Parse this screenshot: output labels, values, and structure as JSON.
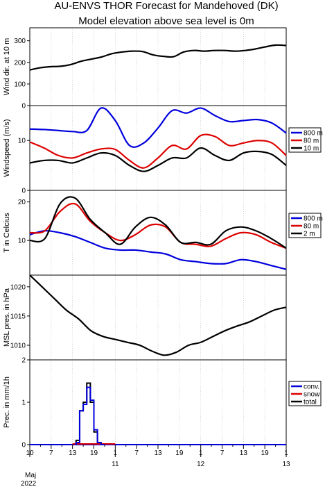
{
  "header": {
    "title_line1": "AU-ENVS THOR Forecast for Mandehoved (DK)",
    "title_line2": "Model elevation above sea level is    0m"
  },
  "x_axis": {
    "tick_labels": [
      "10",
      "7",
      "13",
      "19",
      "1",
      "7",
      "13",
      "19",
      "1",
      "7",
      "13",
      "19",
      "1",
      "7",
      "13",
      "19",
      "1"
    ],
    "day_labels": [
      "11",
      "12",
      "13"
    ],
    "month_label": "Maj",
    "year_label": "2022"
  },
  "chart_data": [
    {
      "type": "line",
      "id": "wind_dir",
      "ylabel": "Wind dir. at 10 m",
      "ylim": [
        0,
        360
      ],
      "yticks": [
        0,
        100,
        200,
        300
      ],
      "series": [
        {
          "color": "#000000",
          "values": [
            165,
            175,
            180,
            182,
            190,
            205,
            215,
            225,
            240,
            248,
            252,
            250,
            235,
            228,
            226,
            248,
            255,
            252,
            255,
            255,
            252,
            255,
            262,
            272,
            280,
            278
          ]
        }
      ]
    },
    {
      "type": "line",
      "id": "windspeed",
      "ylabel": "Windspeed (m/s)",
      "ylim": [
        0,
        17
      ],
      "yticks": [
        0,
        10
      ],
      "legend": [
        "800 m",
        "80 m",
        "10 m"
      ],
      "series": [
        {
          "name": "800 m",
          "color": "#0000dd",
          "values": [
            12.3,
            12.2,
            12.0,
            11.8,
            12.0,
            16.5,
            14.0,
            9.0,
            9.5,
            12.5,
            16.0,
            15.5,
            16.5,
            15.0,
            13.8,
            14.0,
            14.2,
            13.5,
            11.5
          ]
        },
        {
          "name": "80 m",
          "color": "#dd0000",
          "values": [
            9.7,
            8.5,
            7.0,
            6.5,
            7.5,
            8.3,
            8.2,
            6.0,
            4.5,
            6.5,
            9.0,
            8.3,
            11.0,
            10.8,
            9.0,
            9.5,
            10.0,
            9.5,
            7.0
          ]
        },
        {
          "name": "10 m",
          "color": "#000000",
          "values": [
            5.5,
            6.0,
            6.0,
            5.5,
            6.5,
            7.5,
            7.0,
            5.0,
            3.8,
            5.0,
            6.5,
            6.5,
            8.5,
            7.0,
            6.0,
            7.5,
            7.8,
            7.2,
            5.0
          ]
        }
      ]
    },
    {
      "type": "line",
      "id": "temperature",
      "ylabel": "T in Celcius",
      "ylim": [
        1,
        23
      ],
      "yticks": [
        10,
        20
      ],
      "legend": [
        "800 m",
        "80 m",
        "2 m"
      ],
      "series": [
        {
          "name": "800 m",
          "color": "#0000dd",
          "values": [
            11.5,
            12.5,
            12.0,
            11.0,
            9.5,
            8.0,
            7.5,
            7.5,
            7.0,
            6.5,
            5.0,
            4.5,
            4.0,
            4.0,
            5.0,
            4.5,
            3.5,
            2.5
          ]
        },
        {
          "name": "80 m",
          "color": "#dd0000",
          "values": [
            12.0,
            12.5,
            17.5,
            19.5,
            15.0,
            12.0,
            10.0,
            11.5,
            14.0,
            13.5,
            9.5,
            9.0,
            8.5,
            10.5,
            12.0,
            11.5,
            9.5,
            8.0
          ]
        },
        {
          "name": "2 m",
          "color": "#000000",
          "values": [
            10.0,
            10.5,
            19.5,
            21.0,
            15.5,
            12.0,
            9.0,
            13.5,
            16.0,
            14.0,
            9.5,
            9.5,
            9.0,
            12.5,
            13.5,
            12.5,
            10.5,
            8.0
          ]
        }
      ]
    },
    {
      "type": "line",
      "id": "pressure",
      "ylabel": "MSL pres. in hPa",
      "ylim": [
        1007.5,
        1022
      ],
      "yticks": [
        1010,
        1015,
        1020
      ],
      "series": [
        {
          "color": "#000000",
          "values": [
            1022.0,
            1020.0,
            1018.0,
            1016.0,
            1014.5,
            1012.5,
            1011.5,
            1011.0,
            1010.5,
            1010.0,
            1009.0,
            1008.3,
            1008.8,
            1010.0,
            1010.5,
            1011.5,
            1012.5,
            1013.3,
            1014.0,
            1015.0,
            1016.0,
            1016.5
          ]
        }
      ]
    },
    {
      "type": "bar",
      "id": "precip",
      "ylabel": "Prec. in mm/1h",
      "ylim": [
        0,
        2
      ],
      "yticks": [
        0,
        1,
        2
      ],
      "legend": [
        "conv.",
        "snow",
        "total"
      ],
      "series": [
        {
          "name": "total",
          "color": "#000000",
          "hours": [
            13,
            14,
            15,
            16,
            17,
            18,
            19,
            20
          ],
          "values": [
            0.1,
            0.8,
            1.0,
            1.45,
            1.0,
            0.3,
            0.05,
            0.0
          ]
        },
        {
          "name": "conv.",
          "color": "#0000dd",
          "hours": [
            13,
            14,
            15,
            16,
            17,
            18,
            19,
            20
          ],
          "values": [
            0.05,
            0.8,
            0.95,
            1.35,
            1.05,
            0.35,
            0.05,
            0.0
          ]
        },
        {
          "name": "snow",
          "color": "#dd0000",
          "hours": [
            13,
            14,
            15,
            16,
            17,
            18,
            19,
            20
          ],
          "values": [
            0,
            0,
            0,
            0,
            0,
            0,
            0,
            0
          ]
        }
      ]
    }
  ]
}
